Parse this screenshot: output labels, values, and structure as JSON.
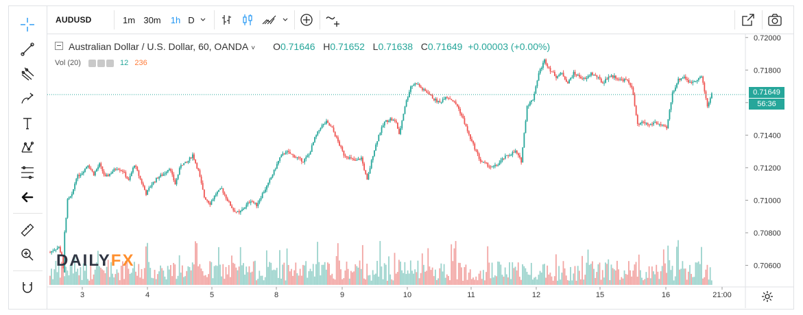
{
  "toolbar": {
    "symbol": "AUDUSD",
    "intervals": [
      "1m",
      "30m",
      "1h",
      "D"
    ],
    "active_interval": "1h"
  },
  "legend": {
    "title": "Australian Dollar / U.S. Dollar, 60, OANDA",
    "o_label": "O",
    "o": "0.71646",
    "h_label": "H",
    "h": "0.71652",
    "l_label": "L",
    "l": "0.71638",
    "c_label": "C",
    "c": "0.71649",
    "change": "+0.00003 (+0.00%)"
  },
  "volume_legend": {
    "label": "Vol (20)",
    "value1": "12",
    "value2": "236"
  },
  "current_price": "0.71649",
  "countdown": "56:36",
  "watermark": {
    "part1": "DAILY",
    "part2": "FX"
  },
  "colors": {
    "up": "#26a69a",
    "down": "#ef5350",
    "vol_up": "#9bd3cc",
    "vol_down": "#f2a6a4",
    "accent": "#2196f3",
    "watermark_fx": "#ff8f2e"
  },
  "chart_data": {
    "type": "candlestick",
    "title": "Australian Dollar / U.S. Dollar, 60, OANDA",
    "ylim": [
      0.7048,
      0.7202
    ],
    "y_ticks": [
      "0.72000",
      "0.71800",
      "0.71600",
      "0.71400",
      "0.71200",
      "0.71000",
      "0.70800",
      "0.70600"
    ],
    "x_tick_labels": [
      "3",
      "4",
      "5",
      "8",
      "9",
      "10",
      "11",
      "12",
      "15",
      "16",
      "21:00"
    ],
    "grid": false,
    "close_path": [
      [
        0,
        0.7068
      ],
      [
        3,
        0.707
      ],
      [
        6,
        0.7071
      ],
      [
        8,
        0.7066
      ],
      [
        9,
        0.7055
      ],
      [
        10,
        0.708
      ],
      [
        12,
        0.71
      ],
      [
        15,
        0.7103
      ],
      [
        18,
        0.7114
      ],
      [
        22,
        0.7117
      ],
      [
        26,
        0.7122
      ],
      [
        30,
        0.7116
      ],
      [
        34,
        0.7122
      ],
      [
        38,
        0.7114
      ],
      [
        42,
        0.7117
      ],
      [
        46,
        0.712
      ],
      [
        50,
        0.7118
      ],
      [
        54,
        0.7112
      ],
      [
        58,
        0.7122
      ],
      [
        62,
        0.7113
      ],
      [
        66,
        0.7104
      ],
      [
        70,
        0.711
      ],
      [
        74,
        0.7114
      ],
      [
        78,
        0.7116
      ],
      [
        82,
        0.712
      ],
      [
        86,
        0.711
      ],
      [
        90,
        0.7122
      ],
      [
        94,
        0.7123
      ],
      [
        98,
        0.7128
      ],
      [
        102,
        0.7118
      ],
      [
        106,
        0.7102
      ],
      [
        110,
        0.7098
      ],
      [
        114,
        0.7104
      ],
      [
        118,
        0.7107
      ],
      [
        122,
        0.71
      ],
      [
        126,
        0.7094
      ],
      [
        130,
        0.7092
      ],
      [
        134,
        0.7096
      ],
      [
        138,
        0.71
      ],
      [
        142,
        0.7097
      ],
      [
        146,
        0.7104
      ],
      [
        150,
        0.711
      ],
      [
        154,
        0.7118
      ],
      [
        158,
        0.7126
      ],
      [
        162,
        0.713
      ],
      [
        166,
        0.7128
      ],
      [
        170,
        0.7126
      ],
      [
        174,
        0.7124
      ],
      [
        178,
        0.7128
      ],
      [
        182,
        0.7138
      ],
      [
        186,
        0.7145
      ],
      [
        190,
        0.7148
      ],
      [
        194,
        0.7144
      ],
      [
        198,
        0.7136
      ],
      [
        202,
        0.7128
      ],
      [
        206,
        0.7126
      ],
      [
        210,
        0.7124
      ],
      [
        214,
        0.7126
      ],
      [
        218,
        0.7112
      ],
      [
        222,
        0.7128
      ],
      [
        226,
        0.714
      ],
      [
        230,
        0.7148
      ],
      [
        234,
        0.715
      ],
      [
        238,
        0.7148
      ],
      [
        240,
        0.714
      ],
      [
        244,
        0.7158
      ],
      [
        248,
        0.717
      ],
      [
        252,
        0.7172
      ],
      [
        256,
        0.7168
      ],
      [
        260,
        0.7166
      ],
      [
        264,
        0.7162
      ],
      [
        268,
        0.716
      ],
      [
        272,
        0.7164
      ],
      [
        276,
        0.7162
      ],
      [
        280,
        0.7158
      ],
      [
        284,
        0.715
      ],
      [
        288,
        0.714
      ],
      [
        292,
        0.7132
      ],
      [
        296,
        0.7124
      ],
      [
        300,
        0.7122
      ],
      [
        304,
        0.712
      ],
      [
        308,
        0.7122
      ],
      [
        312,
        0.7126
      ],
      [
        316,
        0.7128
      ],
      [
        320,
        0.713
      ],
      [
        324,
        0.7124
      ],
      [
        328,
        0.7158
      ],
      [
        332,
        0.7162
      ],
      [
        336,
        0.7178
      ],
      [
        340,
        0.7186
      ],
      [
        344,
        0.718
      ],
      [
        348,
        0.7176
      ],
      [
        352,
        0.7178
      ],
      [
        356,
        0.7172
      ],
      [
        360,
        0.7178
      ],
      [
        364,
        0.7176
      ],
      [
        368,
        0.7174
      ],
      [
        372,
        0.7178
      ],
      [
        376,
        0.7176
      ],
      [
        380,
        0.7172
      ],
      [
        384,
        0.7176
      ],
      [
        388,
        0.7176
      ],
      [
        392,
        0.7174
      ],
      [
        396,
        0.7174
      ],
      [
        400,
        0.717
      ],
      [
        404,
        0.7146
      ],
      [
        408,
        0.7148
      ],
      [
        412,
        0.7146
      ],
      [
        416,
        0.7148
      ],
      [
        420,
        0.7146
      ],
      [
        424,
        0.7144
      ],
      [
        428,
        0.7166
      ],
      [
        432,
        0.7174
      ],
      [
        436,
        0.7176
      ],
      [
        440,
        0.7172
      ],
      [
        444,
        0.7174
      ],
      [
        448,
        0.7176
      ],
      [
        452,
        0.7158
      ],
      [
        455,
        0.7165
      ]
    ]
  }
}
